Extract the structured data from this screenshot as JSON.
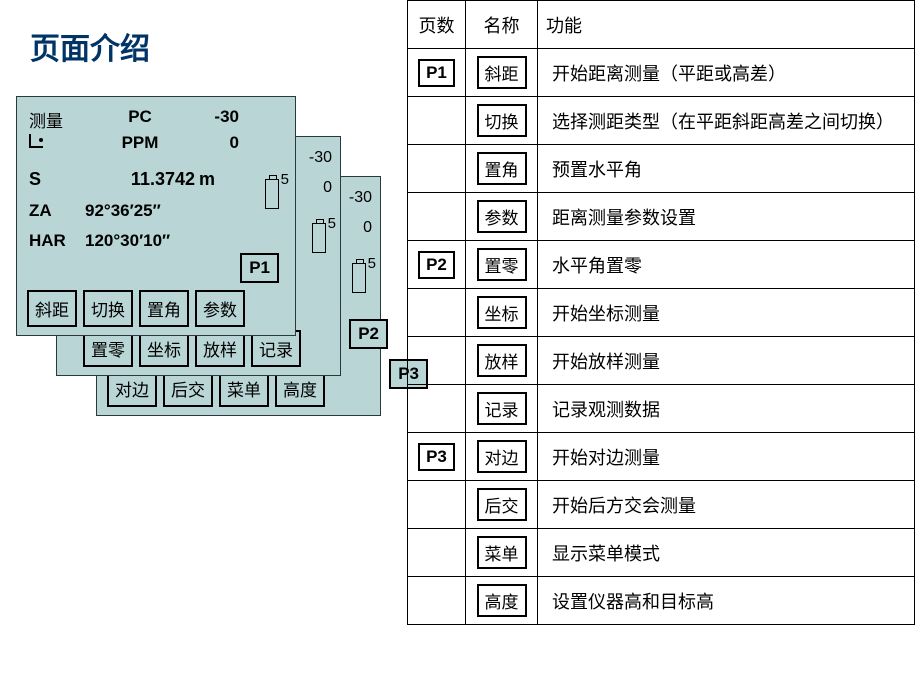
{
  "title": "页面介绍",
  "colors": {
    "screen_bg": "#b9d5d5",
    "border": "#000000",
    "title_color": "#003366",
    "page_bg": "#ffffff"
  },
  "screens": {
    "common": {
      "top_value": "-30",
      "mid_value": "0",
      "battery_level": "5"
    },
    "p1": {
      "indicator": "P1",
      "header_row": {
        "label": "测量",
        "pc_label": "PC",
        "pc_value": "-30"
      },
      "ppm_row": {
        "icon": "tilt",
        "ppm_label": "PPM",
        "ppm_value": "0"
      },
      "s_row": {
        "label": "S",
        "value": "11.3742",
        "unit": "m"
      },
      "za_row": {
        "label": "ZA",
        "value": "92°36′25″"
      },
      "har_row": {
        "label": "HAR",
        "value": "120°30′10″"
      },
      "buttons": [
        "斜距",
        "切换",
        "置角",
        "参数"
      ]
    },
    "p2": {
      "indicator": "P2",
      "buttons": [
        "置零",
        "坐标",
        "放样",
        "记录"
      ]
    },
    "p3": {
      "indicator": "P3",
      "buttons": [
        "对边",
        "后交",
        "菜单",
        "高度"
      ]
    }
  },
  "table": {
    "headers": {
      "page": "页数",
      "name": "名称",
      "func": "功能"
    },
    "rows": [
      {
        "page": "P1",
        "name": "斜距",
        "desc": "开始距离测量（平距或高差）"
      },
      {
        "page": "",
        "name": "切换",
        "desc": "选择测距类型（在平距斜距高差之间切换）",
        "small": true
      },
      {
        "page": "",
        "name": "置角",
        "desc": "预置水平角"
      },
      {
        "page": "",
        "name": "参数",
        "desc": "距离测量参数设置"
      },
      {
        "page": "P2",
        "name": "置零",
        "desc": "水平角置零"
      },
      {
        "page": "",
        "name": "坐标",
        "desc": "开始坐标测量"
      },
      {
        "page": "",
        "name": "放样",
        "desc": "开始放样测量"
      },
      {
        "page": "",
        "name": "记录",
        "desc": "记录观测数据"
      },
      {
        "page": "P3",
        "name": "对边",
        "desc": "开始对边测量"
      },
      {
        "page": "",
        "name": "后交",
        "desc": "开始后方交会测量"
      },
      {
        "page": "",
        "name": "菜单",
        "desc": "显示菜单模式"
      },
      {
        "page": "",
        "name": "高度",
        "desc": "设置仪器高和目标高"
      }
    ]
  }
}
